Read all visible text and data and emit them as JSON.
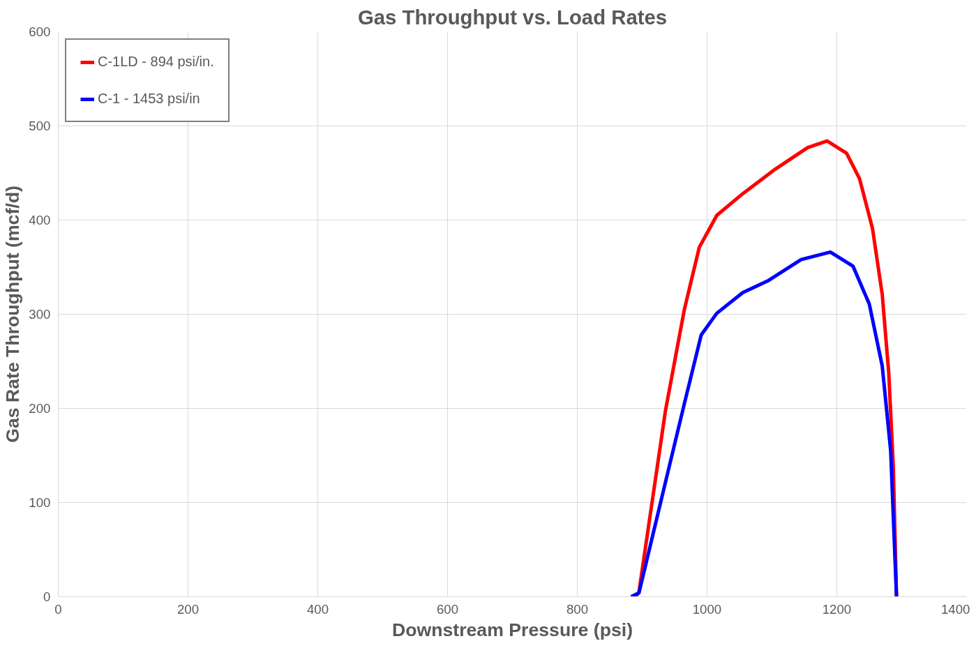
{
  "chart_data": {
    "type": "line",
    "title": "Gas Throughput vs. Load Rates",
    "xlabel": "Downstream Pressure (psi)",
    "ylabel": "Gas Rate Throughput (mcf/d)",
    "xlim": [
      0,
      1400
    ],
    "xticks": [
      0,
      200,
      400,
      600,
      800,
      1000,
      1200,
      1400
    ],
    "ylim": [
      0,
      600
    ],
    "yticks": [
      0,
      100,
      200,
      300,
      400,
      500,
      600
    ],
    "grid": true,
    "legend": "top left",
    "marker": "none",
    "line_style": "solid",
    "series": [
      {
        "name": "C-1LD - 894 psi/in.",
        "color": "#ff0000",
        "x": [
          890,
          895,
          936,
          965,
          988,
          1015,
          1055,
          1105,
          1155,
          1185,
          1215,
          1235,
          1255,
          1270,
          1280,
          1287,
          1292
        ],
        "values": [
          0,
          5,
          198,
          305,
          371,
          405,
          428,
          454,
          477,
          484,
          471,
          444,
          391,
          321,
          238,
          139,
          0
        ]
      },
      {
        "name": "C-1 - 1453 psi/in",
        "color": "#0000ff",
        "x": [
          883,
          895,
          936,
          965,
          991,
          1015,
          1055,
          1095,
          1145,
          1190,
          1225,
          1250,
          1270,
          1283,
          1292
        ],
        "values": [
          0,
          4,
          122,
          205,
          278,
          301,
          323,
          336,
          358,
          366,
          351,
          311,
          245,
          155,
          0
        ]
      }
    ]
  }
}
